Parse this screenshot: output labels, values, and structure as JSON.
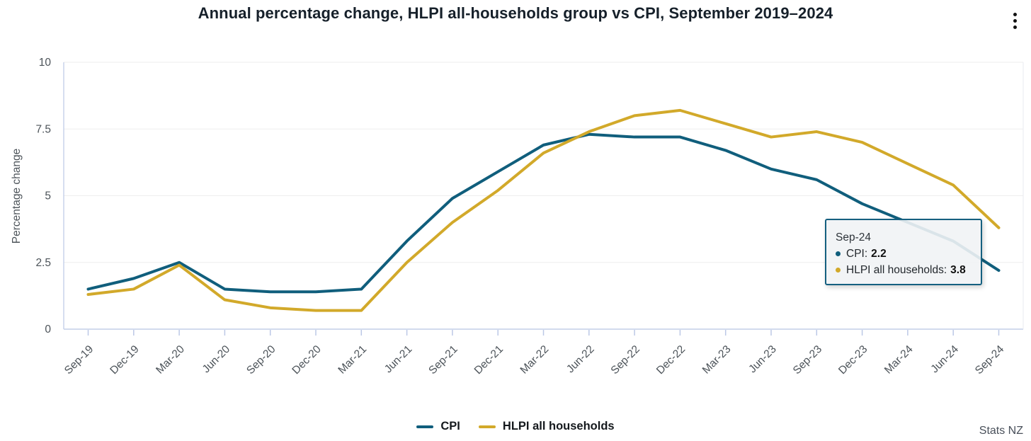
{
  "header": {
    "title": "Annual percentage change, HLPI all-households group vs CPI, September 2019–2024",
    "menu_icon": "kebab-menu-icon"
  },
  "chart_data": {
    "type": "line",
    "title": "Annual percentage change, HLPI all-households group vs CPI, September 2019–2024",
    "xlabel": "",
    "ylabel": "Percentage change",
    "ylim": [
      0,
      10
    ],
    "yticks": [
      0,
      2.5,
      5,
      7.5,
      10
    ],
    "grid": true,
    "legend_position": "bottom",
    "categories": [
      "Sep-19",
      "Dec-19",
      "Mar-20",
      "Jun-20",
      "Sep-20",
      "Dec-20",
      "Mar-21",
      "Jun-21",
      "Sep-21",
      "Dec-21",
      "Mar-22",
      "Jun-22",
      "Sep-22",
      "Dec-22",
      "Mar-23",
      "Jun-23",
      "Sep-23",
      "Dec-23",
      "Mar-24",
      "Jun-24",
      "Sep-24"
    ],
    "series": [
      {
        "name": "CPI",
        "color": "#105e7c",
        "values": [
          1.5,
          1.9,
          2.5,
          1.5,
          1.4,
          1.4,
          1.5,
          3.3,
          4.9,
          5.9,
          6.9,
          7.3,
          7.2,
          7.2,
          6.7,
          6.0,
          5.6,
          4.7,
          4.0,
          3.3,
          2.2
        ]
      },
      {
        "name": "HLPI all households",
        "color": "#d2a92a",
        "values": [
          1.3,
          1.5,
          2.4,
          1.1,
          0.8,
          0.7,
          0.7,
          2.5,
          4.0,
          5.2,
          6.6,
          7.4,
          8.0,
          8.2,
          7.7,
          7.2,
          7.4,
          7.0,
          6.2,
          5.4,
          3.8
        ]
      }
    ]
  },
  "tooltip": {
    "label": "Sep-24",
    "rows": [
      {
        "label": "CPI:",
        "value": "2.2"
      },
      {
        "label": "HLPI all households:",
        "value": "3.8"
      }
    ]
  },
  "footer": {
    "source": "Stats NZ"
  }
}
